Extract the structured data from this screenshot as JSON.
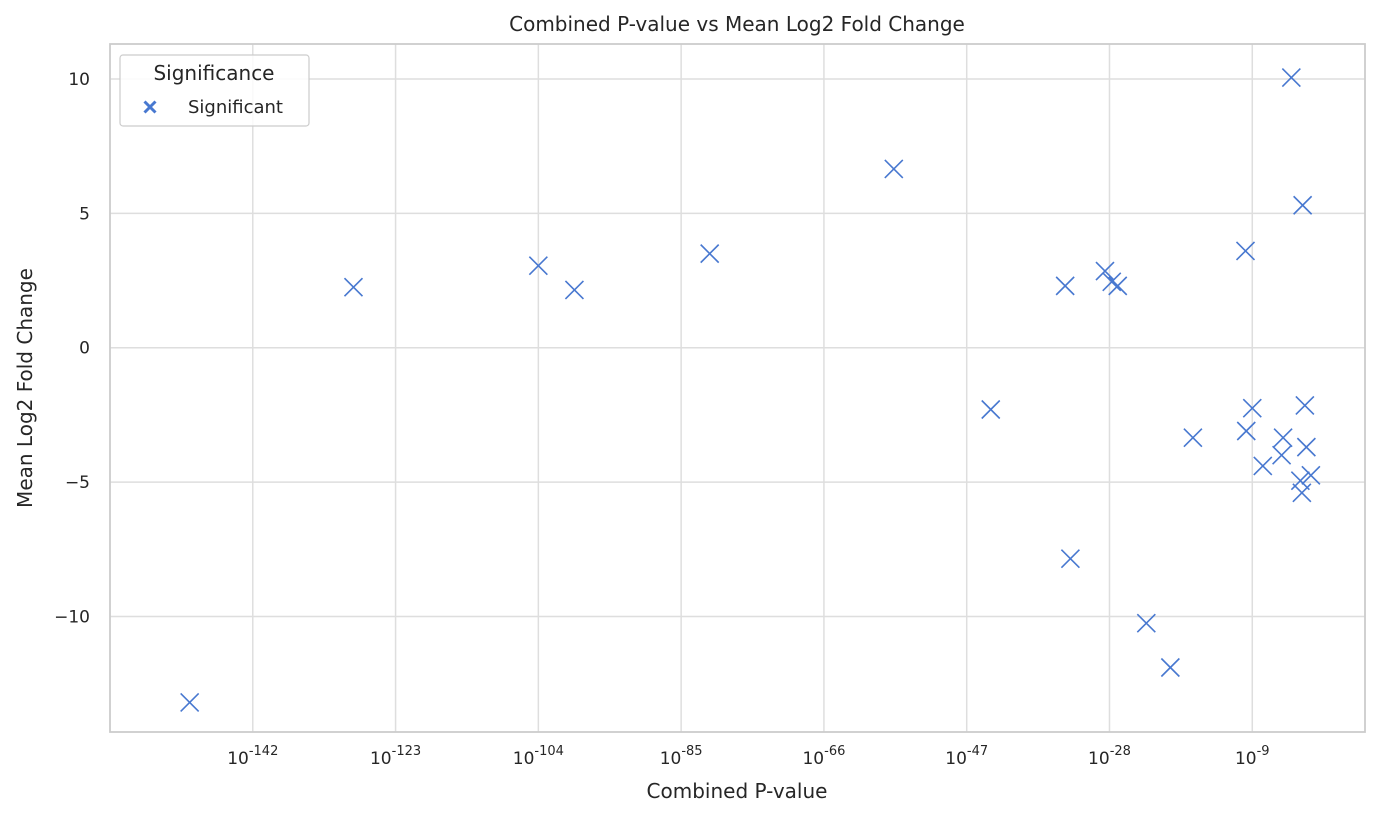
{
  "chart_data": {
    "type": "scatter",
    "title": "Combined P-value vs Mean Log2 Fold Change",
    "xlabel": "Combined P-value",
    "ylabel": "Mean Log2 Fold Change",
    "x_scale": "log",
    "x_log_range": [
      -161,
      6
    ],
    "ylim": [
      -14.3,
      11.3
    ],
    "x_ticks": [
      {
        "exp": -142,
        "label": "-142"
      },
      {
        "exp": -123,
        "label": "-123"
      },
      {
        "exp": -104,
        "label": "-104"
      },
      {
        "exp": -85,
        "label": "-85"
      },
      {
        "exp": -66,
        "label": "-66"
      },
      {
        "exp": -47,
        "label": "-47"
      },
      {
        "exp": -28,
        "label": "-28"
      },
      {
        "exp": -9,
        "label": "-9"
      }
    ],
    "y_ticks": [
      {
        "value": 10,
        "label": "10"
      },
      {
        "value": 5,
        "label": "5"
      },
      {
        "value": 0,
        "label": "0"
      },
      {
        "value": -5,
        "label": "−5"
      },
      {
        "value": -10,
        "label": "−10"
      }
    ],
    "grid": true,
    "legend": {
      "title": "Significance",
      "placement": "top-left",
      "entries": [
        "Significant"
      ]
    },
    "series": [
      {
        "name": "Significant",
        "color": "#4878d0",
        "marker": "x",
        "points": [
          {
            "log10_p": -150.4,
            "y": -13.2
          },
          {
            "log10_p": -128.6,
            "y": 2.25
          },
          {
            "log10_p": -104.0,
            "y": 3.05
          },
          {
            "log10_p": -99.2,
            "y": 2.15
          },
          {
            "log10_p": -81.2,
            "y": 3.5
          },
          {
            "log10_p": -56.7,
            "y": 6.65
          },
          {
            "log10_p": -43.8,
            "y": -2.3
          },
          {
            "log10_p": -33.9,
            "y": 2.3
          },
          {
            "log10_p": -33.2,
            "y": -7.85
          },
          {
            "log10_p": -28.6,
            "y": 2.85
          },
          {
            "log10_p": -27.7,
            "y": 2.45
          },
          {
            "log10_p": -26.9,
            "y": 2.3
          },
          {
            "log10_p": -23.1,
            "y": -10.25
          },
          {
            "log10_p": -19.9,
            "y": -11.9
          },
          {
            "log10_p": -16.9,
            "y": -3.35
          },
          {
            "log10_p": -9.9,
            "y": 3.6
          },
          {
            "log10_p": -9.8,
            "y": -3.1
          },
          {
            "log10_p": -9.0,
            "y": -2.25
          },
          {
            "log10_p": -7.6,
            "y": -4.4
          },
          {
            "log10_p": -4.9,
            "y": -3.35
          },
          {
            "log10_p": -5.1,
            "y": -4.0
          },
          {
            "log10_p": -3.8,
            "y": 10.05
          },
          {
            "log10_p": -2.6,
            "y": -4.95
          },
          {
            "log10_p": -2.4,
            "y": -5.4
          },
          {
            "log10_p": -2.3,
            "y": 5.3
          },
          {
            "log10_p": -2.0,
            "y": -2.15
          },
          {
            "log10_p": -1.8,
            "y": -3.7
          },
          {
            "log10_p": -1.2,
            "y": -4.75
          }
        ]
      }
    ]
  }
}
